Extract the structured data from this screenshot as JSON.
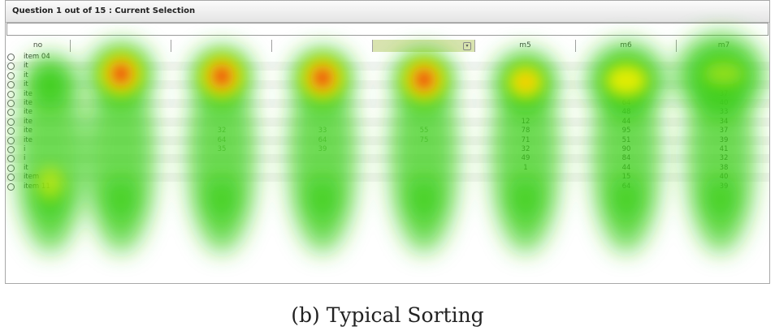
{
  "window": {
    "title": "Question 1 out of 15 : Current Selection"
  },
  "selection_value": "",
  "columns": [
    {
      "label": "no"
    },
    {
      "label": ""
    },
    {
      "label": ""
    },
    {
      "label": ""
    },
    {
      "label": "",
      "sorted": true
    },
    {
      "label": "m5"
    },
    {
      "label": "m6"
    },
    {
      "label": "m7"
    }
  ],
  "rows": [
    {
      "label": "item 04",
      "m5": "",
      "m6": "",
      "m7": ""
    },
    {
      "label": "it",
      "m5": "",
      "m6": "",
      "m7": ""
    },
    {
      "label": "it",
      "m5": "",
      "m6": "",
      "m7": ""
    },
    {
      "label": "it",
      "m5": "",
      "m6": "",
      "m7": ""
    },
    {
      "label": "ite",
      "m5": "",
      "m6": "",
      "m7": "37"
    },
    {
      "label": "ite",
      "m5": "",
      "m6": "64",
      "m7": "40"
    },
    {
      "label": "ite",
      "m5": "",
      "m6": "48",
      "m7": "33"
    },
    {
      "label": "ite",
      "m5": "12",
      "m6": "44",
      "m7": "34"
    },
    {
      "label": "ite",
      "m5": "78",
      "m6": "95",
      "m7": "37"
    },
    {
      "label": "ite",
      "m5": "71",
      "m6": "51",
      "m7": "39"
    },
    {
      "label": "i",
      "m5": "32",
      "m6": "90",
      "m7": "41"
    },
    {
      "label": "i",
      "m5": "49",
      "m6": "84",
      "m7": "32"
    },
    {
      "label": "it",
      "m5": "1",
      "m6": "44",
      "m7": "38"
    },
    {
      "label": "item",
      "m5": "",
      "m6": "15",
      "m7": "40"
    },
    {
      "label": "item 11",
      "m5": "",
      "m6": "64",
      "m7": "39"
    }
  ],
  "faint_values": [
    {
      "row": 8,
      "col": 2,
      "text": "32"
    },
    {
      "row": 8,
      "col": 3,
      "text": "33"
    },
    {
      "row": 8,
      "col": 4,
      "text": "55"
    },
    {
      "row": 9,
      "col": 2,
      "text": "64"
    },
    {
      "row": 9,
      "col": 3,
      "text": "64"
    },
    {
      "row": 9,
      "col": 4,
      "text": "75"
    },
    {
      "row": 10,
      "col": 2,
      "text": "35"
    },
    {
      "row": 10,
      "col": 3,
      "text": "39"
    }
  ],
  "caption": "(b) Typical Sorting",
  "colors": {
    "heat_green": "#3fcf1e",
    "heat_yellow": "#f2f000",
    "heat_red": "#ec1b10"
  }
}
